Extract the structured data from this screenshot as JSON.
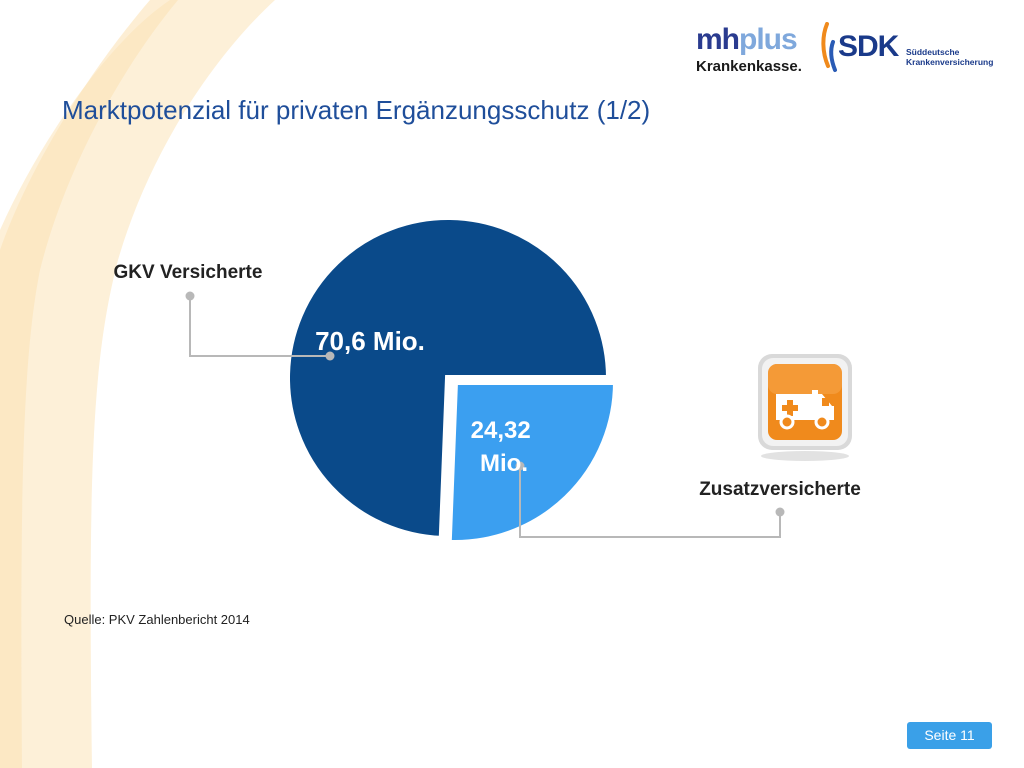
{
  "slide": {
    "title": "Marktpotenzial für privaten Ergänzungsschutz (1/2)",
    "source": "Quelle: PKV Zahlenbericht 2014",
    "page_label": "Seite 11"
  },
  "logos": {
    "mhplus": {
      "mh": "mh",
      "plus": "plus",
      "subtitle": "Krankenkasse."
    },
    "sdk": {
      "word": "SDK",
      "line1": "Süddeutsche",
      "line2": "Krankenversicherung"
    }
  },
  "colors": {
    "title": "#1f4e9a",
    "gkv_slice": "#0a4a8a",
    "zusatz_slice": "#3b9ff0",
    "badge": "#f08a1c",
    "page_badge": "#3aa0e8",
    "swoosh": "#fdf0d8"
  },
  "icons": {
    "zusatz": "ambulance-icon"
  },
  "chart_data": {
    "type": "pie",
    "categories": [
      "GKV Versicherte",
      "Zusatzversicherte"
    ],
    "values": [
      70.6,
      24.32
    ],
    "value_labels": [
      "70,6 Mio.",
      "24,32 Mio."
    ],
    "legend": "callout-labels"
  }
}
